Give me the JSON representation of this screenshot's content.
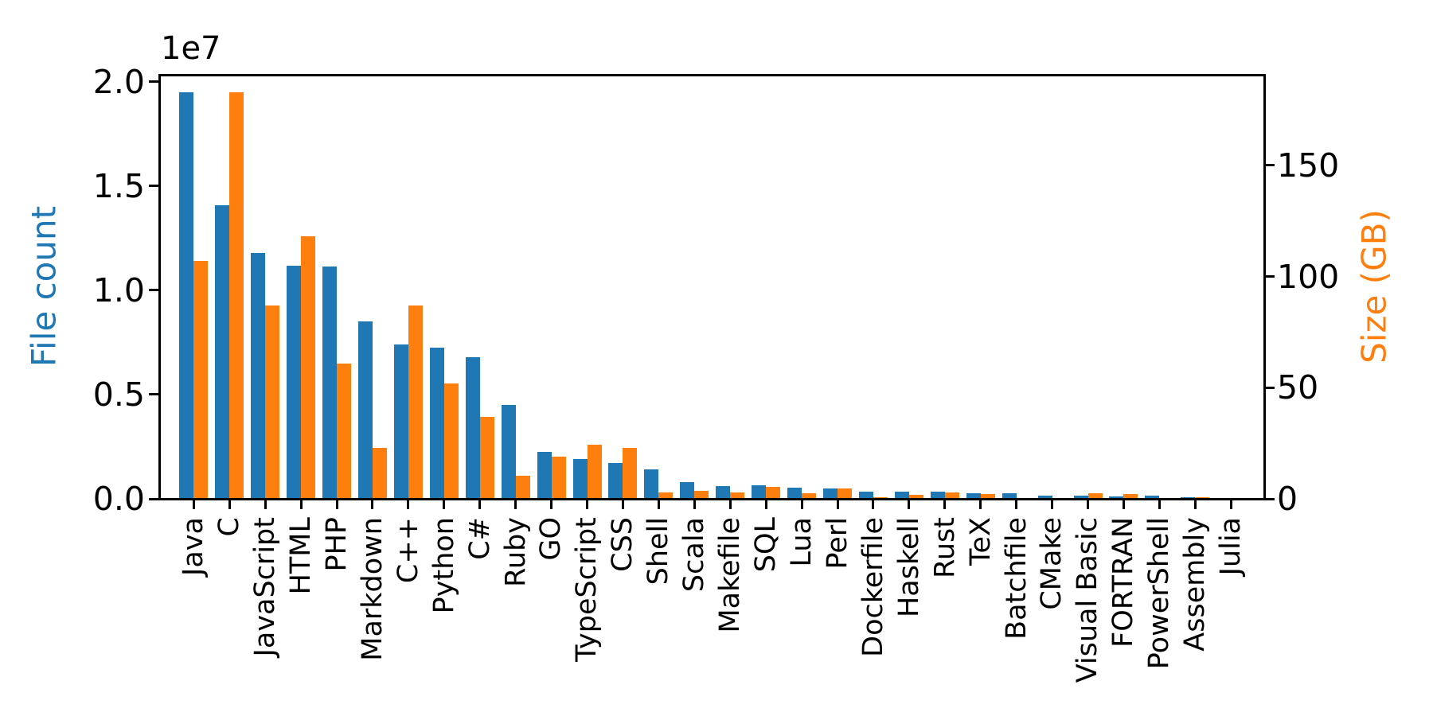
{
  "chart_data": {
    "type": "bar",
    "title": "",
    "offset_text": "1e7",
    "ylabel_left": "File count",
    "ylabel_right": "Size (GB)",
    "xlabel": "",
    "grid": false,
    "legend": "none",
    "colors": {
      "file_count": "#1f77b4",
      "size_gb": "#ff7f0e",
      "ticks": "#000000",
      "background": "#ffffff"
    },
    "categories": [
      "Java",
      "C",
      "JavaScript",
      "HTML",
      "PHP",
      "Markdown",
      "C++",
      "Python",
      "C#",
      "Ruby",
      "GO",
      "TypeScript",
      "CSS",
      "Shell",
      "Scala",
      "Makefile",
      "SQL",
      "Lua",
      "Perl",
      "Dockerfile",
      "Haskell",
      "Rust",
      "TeX",
      "Batchfile",
      "CMake",
      "Visual Basic",
      "FORTRAN",
      "PowerShell",
      "Assembly",
      "Julia"
    ],
    "series": [
      {
        "name": "File count",
        "axis": "left",
        "color": "#1f77b4",
        "values": [
          19500000,
          14100000,
          11800000,
          11200000,
          11150000,
          8500000,
          7400000,
          7250000,
          6800000,
          4500000,
          2250000,
          1900000,
          1700000,
          1400000,
          800000,
          620000,
          660000,
          550000,
          500000,
          340000,
          330000,
          340000,
          270000,
          260000,
          150000,
          150000,
          120000,
          160000,
          90000,
          40000
        ]
      },
      {
        "name": "Size (GB)",
        "axis": "right",
        "color": "#ff7f0e",
        "values": [
          107,
          183,
          87,
          118,
          61,
          23,
          87,
          52,
          37,
          10.5,
          19,
          24.5,
          23,
          3,
          3.5,
          3,
          5.5,
          2.5,
          4.5,
          0.7,
          1.8,
          3,
          2.2,
          0.3,
          0.4,
          2.5,
          2.2,
          0.4,
          0.7,
          0.2
        ]
      }
    ],
    "yticks_left": [
      {
        "value": 0,
        "label": "0.0"
      },
      {
        "value": 5000000,
        "label": "0.5"
      },
      {
        "value": 10000000,
        "label": "1.0"
      },
      {
        "value": 15000000,
        "label": "1.5"
      },
      {
        "value": 20000000,
        "label": "2.0"
      }
    ],
    "yticks_right": [
      {
        "value": 0,
        "label": "0"
      },
      {
        "value": 50,
        "label": "50"
      },
      {
        "value": 100,
        "label": "100"
      },
      {
        "value": 150,
        "label": "150"
      }
    ],
    "ylim_left": [
      0,
      20340000
    ],
    "ylim_right": [
      0,
      190.8
    ]
  }
}
